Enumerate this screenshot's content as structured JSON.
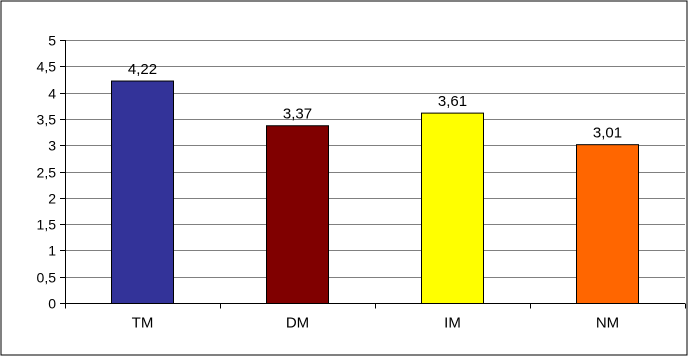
{
  "chart_data": {
    "type": "bar",
    "categories": [
      "TM",
      "DM",
      "IM",
      "NM"
    ],
    "values": [
      4.22,
      3.37,
      3.61,
      3.01
    ],
    "data_labels": [
      "4,22",
      "3,37",
      "3,61",
      "3,01"
    ],
    "colors": [
      "#333399",
      "#800000",
      "#FFFF00",
      "#FF6600"
    ],
    "ylim": [
      0,
      5
    ],
    "yticks": [
      0,
      0.5,
      1,
      1.5,
      2,
      2.5,
      3,
      3.5,
      4,
      4.5,
      5
    ],
    "ytick_labels": [
      "0",
      "0,5",
      "1",
      "1,5",
      "2",
      "2,5",
      "3",
      "3,5",
      "4",
      "4,5",
      "5"
    ],
    "grid": true,
    "legend": "none",
    "title": "",
    "xlabel": "",
    "ylabel": ""
  }
}
